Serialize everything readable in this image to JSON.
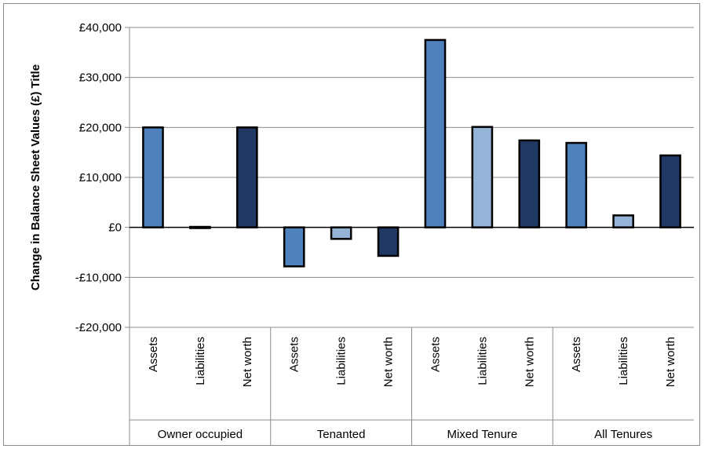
{
  "chart_data": {
    "type": "bar",
    "ylabel": "Change in Balance Sheet Values (£) Title",
    "ylim": [
      -20000,
      40000
    ],
    "yticks": [
      40000,
      30000,
      20000,
      10000,
      0,
      -10000,
      -20000
    ],
    "ytick_labels": [
      "£40,000",
      "£30,000",
      "£20,000",
      "£10,000",
      "£0",
      "-£10,000",
      "-£20,000"
    ],
    "grid": true,
    "legend": "none",
    "groups": [
      "Owner occupied",
      "Tenanted",
      "Mixed Tenure",
      "All Tenures"
    ],
    "categories": [
      "Assets",
      "Liabilities",
      "Net worth"
    ],
    "series": [
      {
        "group": "Owner occupied",
        "values": [
          20000,
          100,
          20000
        ]
      },
      {
        "group": "Tenanted",
        "values": [
          -7800,
          -2300,
          -5700
        ]
      },
      {
        "group": "Mixed Tenure",
        "values": [
          37500,
          20100,
          17400
        ]
      },
      {
        "group": "All Tenures",
        "values": [
          16900,
          2400,
          14400
        ]
      }
    ],
    "colors": {
      "Assets": "#4f81bd",
      "Liabilities": "#95b3d7",
      "Net worth": "#1f3864",
      "outline": "#000000",
      "grid": "#8c8c8c"
    }
  }
}
